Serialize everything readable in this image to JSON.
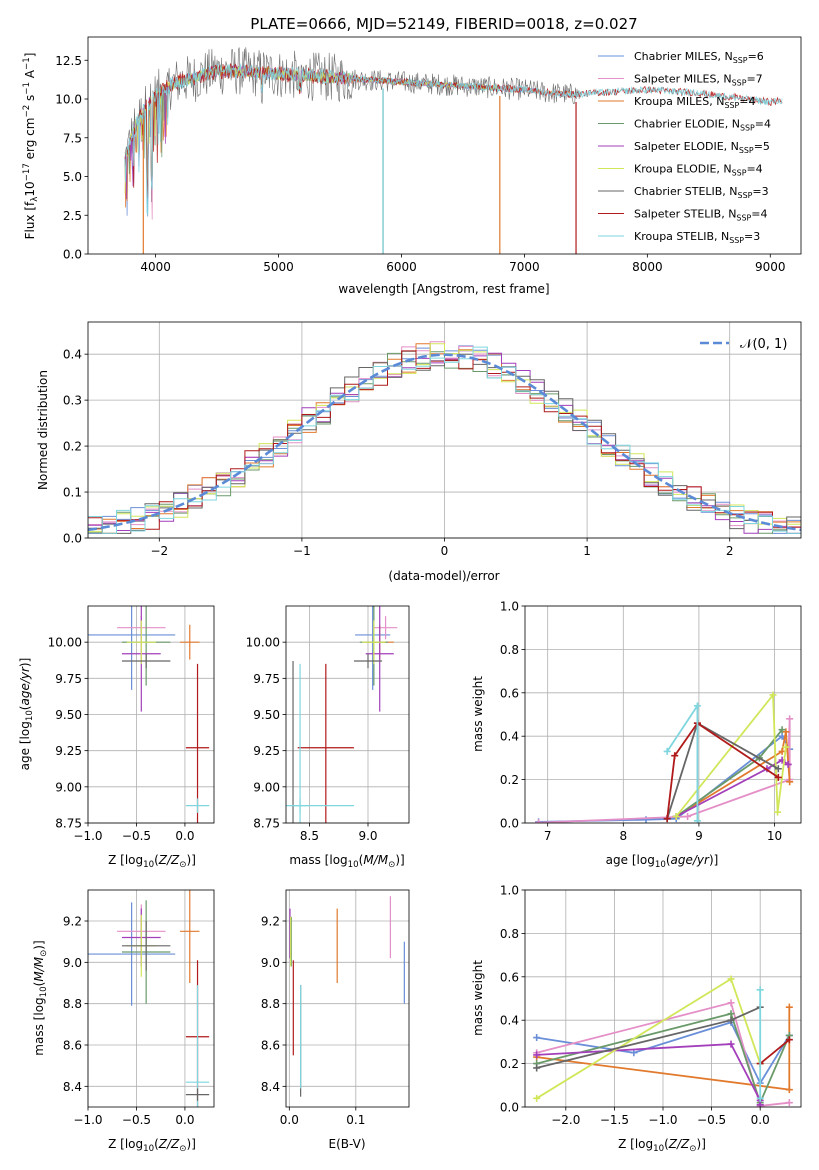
{
  "title": "PLATE=0666, MJD=52149, FIBERID=0018, z=0.027",
  "colors": {
    "chabrier_miles": "#6a8fd8",
    "salpeter_miles": "#e48fc7",
    "kroupa_miles": "#e27a2e",
    "chabrier_elodie": "#6a9a6a",
    "salpeter_elodie": "#a33fbb",
    "kroupa_elodie": "#d2e65a",
    "chabrier_stelib": "#666666",
    "salpeter_stelib": "#b01a1a",
    "kroupa_stelib": "#7fd6df",
    "gaussian": "#5b8ad6"
  },
  "labels": {
    "spec_xlabel": "wavelength [Angstrom, rest frame]",
    "spec_ylabel": "Flux [f_λ10^{-17} erg cm^{-2} s^{-1} A^{-1}]",
    "hist_xlabel": "(data-model)/error",
    "hist_ylabel": "Normed distribution",
    "hist_legend": "𝒩(0, 1)",
    "age_ylabel": "age  [log10(age/yr)]",
    "z_xlabel": "Z [log10(Z/Z⊙)]",
    "mass_xlabel": "mass [log10(M/M⊙)]",
    "mass_ylabel": "mass [log10(M/M⊙)]",
    "ebv_xlabel": "E(B-V)",
    "weight_ylabel": "mass weight",
    "age_xlabel": "age  [log10(age/yr)]"
  },
  "legend_labels": [
    {
      "name": "Chabrier MILES, N_SSP=6",
      "pre": "Chabrier MILES, N",
      "sub": "SSP",
      "post": "=6"
    },
    {
      "name": "Salpeter MILES, N_SSP=7",
      "pre": "Salpeter MILES, N",
      "sub": "SSP",
      "post": "=7"
    },
    {
      "name": "Kroupa MILES, N_SSP=4",
      "pre": "Kroupa MILES, N",
      "sub": "SSP",
      "post": "=4"
    },
    {
      "name": "Chabrier ELODIE, N_SSP=4",
      "pre": "Chabrier ELODIE, N",
      "sub": "SSP",
      "post": "=4"
    },
    {
      "name": "Salpeter ELODIE, N_SSP=5",
      "pre": "Salpeter ELODIE, N",
      "sub": "SSP",
      "post": "=5"
    },
    {
      "name": "Kroupa ELODIE, N_SSP=4",
      "pre": "Kroupa ELODIE, N",
      "sub": "SSP",
      "post": "=4"
    },
    {
      "name": "Chabrier STELIB, N_SSP=3",
      "pre": "Chabrier STELIB, N",
      "sub": "SSP",
      "post": "=3"
    },
    {
      "name": "Salpeter STELIB, N_SSP=4",
      "pre": "Salpeter STELIB, N",
      "sub": "SSP",
      "post": "=4"
    },
    {
      "name": "Kroupa STELIB, N_SSP=3",
      "pre": "Kroupa STELIB, N",
      "sub": "SSP",
      "post": "=3"
    }
  ],
  "chart_data": [
    {
      "type": "line",
      "panel": "spectrum",
      "xlabel": "wavelength [Angstrom, rest frame]",
      "ylabel": "Flux [f_λ10^{-17} erg cm^{-2} s^{-1} A^{-1}]",
      "xlim": [
        3450,
        9250
      ],
      "ylim": [
        0,
        14
      ],
      "xticks": [
        4000,
        5000,
        6000,
        7000,
        8000,
        9000
      ],
      "yticks": [
        0.0,
        2.5,
        5.0,
        7.5,
        10.0,
        12.5
      ],
      "legend_position": "top-right",
      "envelope": [
        [
          3750,
          6.0
        ],
        [
          3800,
          7.5
        ],
        [
          3850,
          8.5
        ],
        [
          3900,
          9.2
        ],
        [
          3950,
          9.8
        ],
        [
          4000,
          10.2
        ],
        [
          4100,
          10.8
        ],
        [
          4200,
          11.2
        ],
        [
          4300,
          11.3
        ],
        [
          4400,
          11.6
        ],
        [
          4500,
          11.8
        ],
        [
          4600,
          11.8
        ],
        [
          4700,
          11.8
        ],
        [
          4800,
          11.7
        ],
        [
          4900,
          11.7
        ],
        [
          5000,
          11.6
        ],
        [
          5200,
          11.5
        ],
        [
          5400,
          11.4
        ],
        [
          5600,
          11.3
        ],
        [
          5800,
          11.2
        ],
        [
          6000,
          11.1
        ],
        [
          6200,
          11.0
        ],
        [
          6400,
          10.9
        ],
        [
          6600,
          10.8
        ],
        [
          6800,
          10.7
        ],
        [
          7000,
          10.6
        ],
        [
          7200,
          10.4
        ],
        [
          7400,
          10.3
        ],
        [
          7600,
          10.4
        ],
        [
          7800,
          10.5
        ],
        [
          8000,
          10.6
        ],
        [
          8200,
          10.5
        ],
        [
          8400,
          10.4
        ],
        [
          8600,
          10.2
        ],
        [
          8800,
          10.0
        ],
        [
          9000,
          9.8
        ],
        [
          9100,
          9.9
        ]
      ],
      "gaps": [
        {
          "series": "Kroupa MILES",
          "x": 3900
        },
        {
          "series": "Chabrier STELIB",
          "x": 5850
        },
        {
          "series": "Kroupa STELIB",
          "x": 5850
        },
        {
          "series": "Kroupa MILES",
          "x": 6800
        },
        {
          "series": "Salpeter STELIB",
          "x": 7420
        }
      ]
    },
    {
      "type": "line",
      "panel": "residual_histogram",
      "xlabel": "(data-model)/error",
      "ylabel": "Normed distribution",
      "xlim": [
        -2.5,
        2.5
      ],
      "ylim": [
        0,
        0.47
      ],
      "xticks": [
        -2,
        -1,
        0,
        1,
        2
      ],
      "yticks": [
        0.0,
        0.1,
        0.2,
        0.3,
        0.4
      ],
      "legend_position": "top-right",
      "series": [
        {
          "name": "𝒩(0, 1)",
          "function": "standard-normal-pdf"
        }
      ]
    },
    {
      "type": "scatter",
      "panel": "age_vs_Z",
      "xlabel": "Z [log10(Z/Z⊙)]",
      "ylabel": "age  [log10(age/yr)]",
      "xlim": [
        -1.0,
        0.3
      ],
      "ylim": [
        8.75,
        10.25
      ],
      "xticks": [
        -1.0,
        -0.5,
        0.0
      ],
      "yticks": [
        8.75,
        9.0,
        9.25,
        9.5,
        9.75,
        10.0
      ],
      "points": [
        {
          "series": "Chabrier MILES",
          "x": -0.55,
          "y": 10.05,
          "xerr": 0.45,
          "yerr": 0.38
        },
        {
          "series": "Salpeter MILES",
          "x": -0.45,
          "y": 10.1,
          "xerr": 0.25,
          "yerr": 0.08
        },
        {
          "series": "Kroupa MILES",
          "x": 0.05,
          "y": 10.0,
          "xerr": 0.1,
          "yerr": 0.12
        },
        {
          "series": "Chabrier ELODIE",
          "x": -0.4,
          "y": 10.0,
          "xerr": 0.25,
          "yerr": 0.3
        },
        {
          "series": "Salpeter ELODIE",
          "x": -0.45,
          "y": 9.92,
          "xerr": 0.2,
          "yerr": 0.4
        },
        {
          "series": "Kroupa ELODIE",
          "x": -0.45,
          "y": 10.0,
          "xerr": 0.15,
          "yerr": 0.15
        },
        {
          "series": "Chabrier STELIB",
          "x": -0.4,
          "y": 9.87,
          "xerr": 0.25,
          "yerr": 0.05
        },
        {
          "series": "Salpeter STELIB",
          "x": 0.13,
          "y": 9.27,
          "xerr": 0.12,
          "yerr": 0.58
        },
        {
          "series": "Kroupa STELIB",
          "x": 0.13,
          "y": 8.87,
          "xerr": 0.12,
          "yerr": 0.05
        }
      ]
    },
    {
      "type": "scatter",
      "panel": "age_vs_mass",
      "xlabel": "mass [log10(M/M⊙)]",
      "ylabel": "",
      "xlim": [
        8.3,
        9.35
      ],
      "ylim": [
        8.75,
        10.25
      ],
      "xticks": [
        8.5,
        9.0
      ],
      "yticks": [
        8.75,
        9.0,
        9.25,
        9.5,
        9.75,
        10.0
      ],
      "points": [
        {
          "series": "Chabrier MILES",
          "x": 9.04,
          "y": 10.05,
          "xerr": 0.15,
          "yerr": 0.38
        },
        {
          "series": "Salpeter MILES",
          "x": 9.15,
          "y": 10.1,
          "xerr": 0.1,
          "yerr": 0.08
        },
        {
          "series": "Kroupa MILES",
          "x": 9.1,
          "y": 10.0,
          "xerr": 0.12,
          "yerr": 0.12
        },
        {
          "series": "Chabrier ELODIE",
          "x": 9.05,
          "y": 10.0,
          "xerr": 0.12,
          "yerr": 0.3
        },
        {
          "series": "Salpeter ELODIE",
          "x": 9.1,
          "y": 9.92,
          "xerr": 0.12,
          "yerr": 0.4
        },
        {
          "series": "Kroupa ELODIE",
          "x": 9.05,
          "y": 10.0,
          "xerr": 0.1,
          "yerr": 0.15
        },
        {
          "series": "Chabrier STELIB",
          "x": 9.0,
          "y": 9.87,
          "xerr": 0.12,
          "yerr": 0.05
        },
        {
          "series": "Salpeter STELIB",
          "x": 8.64,
          "y": 9.27,
          "xerr": 0.24,
          "yerr": 0.58
        },
        {
          "series": "Kroupa STELIB",
          "x": 8.42,
          "y": 8.87,
          "xerr": 0.08,
          "yerr": 0.05
        },
        {
          "series": "Chabrier STELIB",
          "x": 8.36,
          "y": 8.87,
          "xerr": 0.0,
          "yerr": 1.0
        },
        {
          "series": "Kroupa STELIB",
          "x": 8.42,
          "y": 8.87,
          "xerr": 0.46,
          "yerr": 0.98
        }
      ]
    },
    {
      "type": "line",
      "panel": "mass_weight_vs_age",
      "xlabel": "age  [log10(age/yr)]",
      "ylabel": "mass weight",
      "xlim": [
        6.7,
        10.35
      ],
      "ylim": [
        0,
        1.0
      ],
      "xticks": [
        7,
        8,
        9,
        10
      ],
      "yticks": [
        0.0,
        0.2,
        0.4,
        0.6,
        0.8,
        1.0
      ],
      "series": [
        {
          "name": "Chabrier MILES",
          "x": [
            6.88,
            8.3,
            8.7,
            10.1,
            10.2
          ],
          "y": [
            0.005,
            0.015,
            0.02,
            0.4,
            0.34
          ]
        },
        {
          "name": "Salpeter MILES",
          "x": [
            6.88,
            8.85,
            10.2,
            10.2,
            10.18
          ],
          "y": [
            0.002,
            0.03,
            0.2,
            0.48,
            0.27
          ]
        },
        {
          "name": "Kroupa MILES",
          "x": [
            8.7,
            10.1,
            10.15,
            10.2
          ],
          "y": [
            0.03,
            0.33,
            0.42,
            0.19
          ]
        },
        {
          "name": "Chabrier ELODIE",
          "x": [
            8.7,
            9.8,
            10.1
          ],
          "y": [
            0.03,
            0.3,
            0.43
          ]
        },
        {
          "name": "Salpeter ELODIE",
          "x": [
            8.7,
            9.9,
            10.1,
            10.18
          ],
          "y": [
            0.03,
            0.25,
            0.29,
            0.27
          ]
        },
        {
          "name": "Kroupa ELODIE",
          "x": [
            8.7,
            9.98,
            10.04,
            10.15
          ],
          "y": [
            0.03,
            0.59,
            0.05,
            0.35
          ]
        },
        {
          "name": "Chabrier STELIB",
          "x": [
            8.58,
            8.98,
            10.05
          ],
          "y": [
            0.02,
            0.46,
            0.25
          ]
        },
        {
          "name": "Salpeter STELIB",
          "x": [
            8.58,
            8.68,
            8.98,
            10.05
          ],
          "y": [
            0.02,
            0.31,
            0.46,
            0.21
          ]
        },
        {
          "name": "Kroupa STELIB",
          "x": [
            8.58,
            8.98,
            8.98
          ],
          "y": [
            0.33,
            0.54,
            0.01
          ]
        }
      ]
    },
    {
      "type": "scatter",
      "panel": "mass_vs_Z",
      "xlabel": "Z [log10(Z/Z⊙)]",
      "ylabel": "mass [log10(M/M⊙)]",
      "xlim": [
        -1.0,
        0.3
      ],
      "ylim": [
        8.3,
        9.35
      ],
      "xticks": [
        -1.0,
        -0.5,
        0.0
      ],
      "yticks": [
        8.4,
        8.6,
        8.8,
        9.0,
        9.2
      ],
      "points": [
        {
          "series": "Chabrier MILES",
          "x": -0.55,
          "y": 9.04,
          "xerr": 0.45,
          "yerr": 0.25
        },
        {
          "series": "Salpeter MILES",
          "x": -0.45,
          "y": 9.15,
          "xerr": 0.25,
          "yerr": 0.13
        },
        {
          "series": "Kroupa MILES",
          "x": 0.05,
          "y": 9.15,
          "xerr": 0.1,
          "yerr": 0.25
        },
        {
          "series": "Chabrier ELODIE",
          "x": -0.4,
          "y": 9.05,
          "xerr": 0.25,
          "yerr": 0.25
        },
        {
          "series": "Salpeter ELODIE",
          "x": -0.45,
          "y": 9.12,
          "xerr": 0.2,
          "yerr": 0.14
        },
        {
          "series": "Kroupa ELODIE",
          "x": -0.45,
          "y": 9.08,
          "xerr": 0.15,
          "yerr": 0.15
        },
        {
          "series": "Chabrier STELIB",
          "x": -0.4,
          "y": 9.08,
          "xerr": 0.25,
          "yerr": 0.12
        },
        {
          "series": "Salpeter STELIB",
          "x": 0.13,
          "y": 8.64,
          "xerr": 0.12,
          "yerr": 0.37
        },
        {
          "series": "Kroupa STELIB",
          "x": 0.13,
          "y": 8.42,
          "xerr": 0.12,
          "yerr": 0.47
        },
        {
          "series": "Chabrier STELIB",
          "x": 0.13,
          "y": 8.36,
          "xerr": 0.12,
          "yerr": 0.03
        }
      ]
    },
    {
      "type": "scatter",
      "panel": "mass_vs_EBV",
      "xlabel": "E(B-V)",
      "ylabel": "",
      "xlim": [
        -0.005,
        0.18
      ],
      "ylim": [
        8.3,
        9.35
      ],
      "xticks": [
        0.0,
        0.1
      ],
      "yticks": [
        8.4,
        8.6,
        8.8,
        9.0,
        9.2
      ],
      "points": [
        {
          "series": "Chabrier MILES",
          "x": 0.173,
          "y": 8.95,
          "yerr": 0.15
        },
        {
          "series": "Salpeter MILES",
          "x": 0.152,
          "y": 9.17,
          "yerr": 0.15
        },
        {
          "series": "Kroupa MILES",
          "x": 0.072,
          "y": 9.08,
          "yerr": 0.18
        },
        {
          "series": "Chabrier ELODIE",
          "x": 0.003,
          "y": 9.1,
          "yerr": 0.12
        },
        {
          "series": "Salpeter ELODIE",
          "x": 0.001,
          "y": 9.14,
          "yerr": 0.12
        },
        {
          "series": "Kroupa ELODIE",
          "x": 0.002,
          "y": 9.1,
          "yerr": 0.12
        },
        {
          "series": "Chabrier STELIB",
          "x": 0.017,
          "y": 8.62,
          "yerr": 0.27
        },
        {
          "series": "Salpeter STELIB",
          "x": 0.006,
          "y": 8.78,
          "yerr": 0.23
        },
        {
          "series": "Kroupa STELIB",
          "x": 0.017,
          "y": 8.64,
          "yerr": 0.25
        }
      ]
    },
    {
      "type": "line",
      "panel": "mass_weight_vs_Z",
      "xlabel": "Z [log10(Z/Z⊙)]",
      "ylabel": "mass weight",
      "xlim": [
        -2.42,
        0.42
      ],
      "ylim": [
        0,
        1.0
      ],
      "xticks": [
        -2.0,
        -1.5,
        -1.0,
        -0.5,
        0.0
      ],
      "yticks": [
        0.0,
        0.2,
        0.4,
        0.6,
        0.8,
        1.0
      ],
      "series": [
        {
          "name": "Chabrier MILES",
          "x": [
            -2.3,
            -1.3,
            -0.3,
            0.0,
            0.3
          ],
          "y": [
            0.32,
            0.25,
            0.39,
            0.11,
            0.33
          ]
        },
        {
          "name": "Salpeter MILES",
          "x": [
            -2.3,
            -0.3,
            0.0,
            0.3
          ],
          "y": [
            0.25,
            0.48,
            0.005,
            0.02
          ]
        },
        {
          "name": "Kroupa MILES",
          "x": [
            -2.3,
            0.3,
            0.3
          ],
          "y": [
            0.23,
            0.08,
            0.46
          ]
        },
        {
          "name": "Chabrier ELODIE",
          "x": [
            -2.3,
            -0.3,
            0.0,
            0.3
          ],
          "y": [
            0.2,
            0.43,
            0.02,
            0.33
          ]
        },
        {
          "name": "Salpeter ELODIE",
          "x": [
            -2.3,
            -0.3,
            0.0,
            0.0
          ],
          "y": [
            0.24,
            0.29,
            0.03,
            0.01
          ]
        },
        {
          "name": "Kroupa ELODIE",
          "x": [
            -2.3,
            -0.3,
            0.0
          ],
          "y": [
            0.04,
            0.59,
            0.2
          ]
        },
        {
          "name": "Chabrier STELIB",
          "x": [
            -2.3,
            -0.3,
            0.0
          ],
          "y": [
            0.18,
            0.4,
            0.46
          ]
        },
        {
          "name": "Salpeter STELIB",
          "x": [
            0.0,
            0.3
          ],
          "y": [
            0.2,
            0.31
          ]
        },
        {
          "name": "Kroupa STELIB",
          "x": [
            0.0,
            0.0
          ],
          "y": [
            0.54,
            0.04
          ]
        }
      ]
    }
  ]
}
